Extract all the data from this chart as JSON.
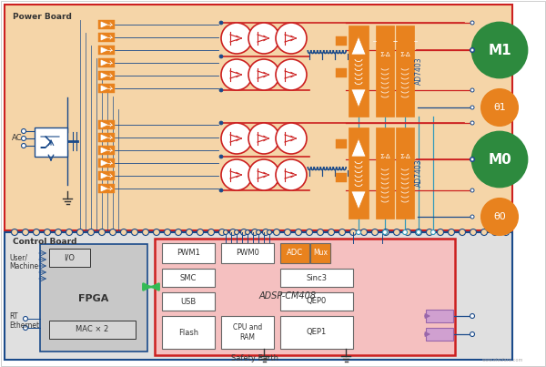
{
  "bg_outer": "#ffffff",
  "bg_power_board": "#f5d5a8",
  "bg_control_board": "#e0e0e0",
  "bg_adsp": "#f5c0c0",
  "bg_fpga": "#c8c8c8",
  "color_orange": "#e8821e",
  "color_green": "#2d8a3e",
  "color_red": "#cc2020",
  "color_blue": "#1a4a8a",
  "color_cyan": "#3399bb",
  "color_purple": "#9966aa",
  "color_dark": "#333333",
  "color_white": "#ffffff",
  "power_board_label": "Power Board",
  "control_board_label": "Control Board",
  "safety_earth_label": "Safety Earth",
  "ac_label": "AC",
  "adsp_label": "ADSP-CM408",
  "fpga_label": "FPGA",
  "pwm1_label": "PWM1",
  "pwm0_label": "PWM0",
  "adc_label": "ADC",
  "mux_label": "Mux",
  "smc_label": "SMC",
  "sinc3_label": "Sinc3",
  "usb_label": "USB",
  "qep0_label": "QEP0",
  "flash_label": "Flash",
  "cpu_ram_label": "CPU and\nRAM",
  "qep1_label": "QEP1",
  "io_label": "I/O",
  "mac_label": "MAC × 2",
  "m1_label": "M1",
  "m0_label": "M0",
  "theta1_label": "θ1",
  "theta0_label": "θ0",
  "ad7403_label": "AD7403",
  "user_machine_label": "User/\nMachine",
  "rt_ethernet_label": "RT\nEthernet",
  "watermark": "www.elecfans.com"
}
